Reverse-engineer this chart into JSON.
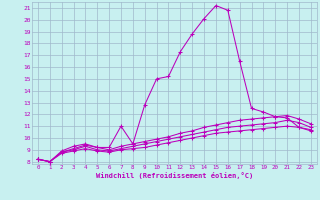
{
  "xlabel": "Windchill (Refroidissement éolien,°C)",
  "ylabel": "",
  "xlim": [
    -0.5,
    23.5
  ],
  "ylim": [
    7.8,
    21.5
  ],
  "background_color": "#c8f0f0",
  "grid_color": "#a0b8cc",
  "line_color": "#bb00bb",
  "curves": [
    {
      "x": [
        0,
        1,
        2,
        3,
        4,
        5,
        6,
        7,
        8,
        9,
        10,
        11,
        12,
        13,
        14,
        15,
        16,
        17,
        18,
        19,
        20,
        21,
        22,
        23
      ],
      "y": [
        8.2,
        8.0,
        8.9,
        9.3,
        9.5,
        9.2,
        9.2,
        11.0,
        9.5,
        12.8,
        15.0,
        15.2,
        17.3,
        18.8,
        20.1,
        21.2,
        20.8,
        16.5,
        12.5,
        12.2,
        11.8,
        11.7,
        10.9,
        10.7
      ]
    },
    {
      "x": [
        0,
        1,
        2,
        3,
        4,
        5,
        6,
        7,
        8,
        9,
        10,
        11,
        12,
        13,
        14,
        15,
        16,
        17,
        18,
        19,
        20,
        21,
        22,
        23
      ],
      "y": [
        8.2,
        8.0,
        8.8,
        9.1,
        9.4,
        9.2,
        9.0,
        9.3,
        9.5,
        9.7,
        9.9,
        10.1,
        10.4,
        10.6,
        10.9,
        11.1,
        11.3,
        11.5,
        11.6,
        11.7,
        11.8,
        11.9,
        11.6,
        11.2
      ]
    },
    {
      "x": [
        0,
        1,
        2,
        3,
        4,
        5,
        6,
        7,
        8,
        9,
        10,
        11,
        12,
        13,
        14,
        15,
        16,
        17,
        18,
        19,
        20,
        21,
        22,
        23
      ],
      "y": [
        8.2,
        8.0,
        8.8,
        9.0,
        9.3,
        9.0,
        8.9,
        9.1,
        9.3,
        9.5,
        9.7,
        9.9,
        10.1,
        10.3,
        10.5,
        10.7,
        10.9,
        11.0,
        11.1,
        11.2,
        11.3,
        11.5,
        11.3,
        10.9
      ]
    },
    {
      "x": [
        0,
        1,
        2,
        3,
        4,
        5,
        6,
        7,
        8,
        9,
        10,
        11,
        12,
        13,
        14,
        15,
        16,
        17,
        18,
        19,
        20,
        21,
        22,
        23
      ],
      "y": [
        8.2,
        8.0,
        8.7,
        8.9,
        9.1,
        8.9,
        8.8,
        9.0,
        9.1,
        9.2,
        9.4,
        9.6,
        9.8,
        10.0,
        10.2,
        10.4,
        10.5,
        10.6,
        10.7,
        10.8,
        10.9,
        11.0,
        10.9,
        10.6
      ]
    }
  ]
}
